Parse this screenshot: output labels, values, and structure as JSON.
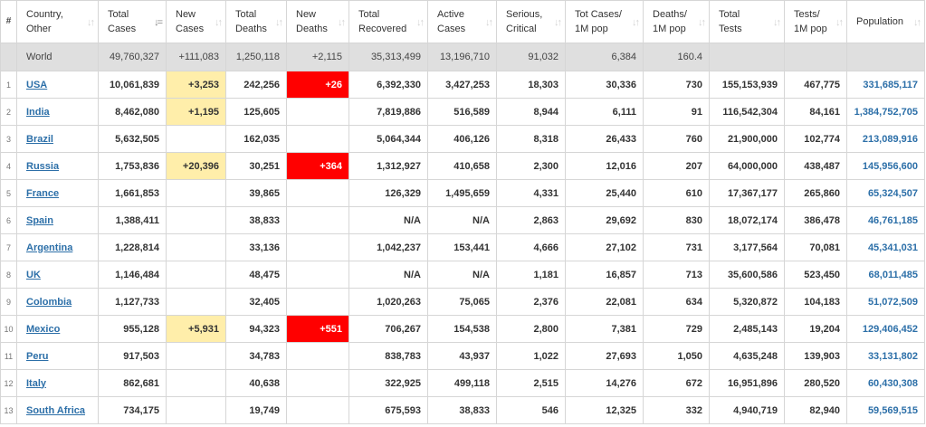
{
  "headers": [
    {
      "key": "rank",
      "label": "#",
      "sorted": false
    },
    {
      "key": "country",
      "label": "Country,\nOther",
      "sorted": false
    },
    {
      "key": "total_cases",
      "label": "Total\nCases",
      "sorted": true
    },
    {
      "key": "new_cases",
      "label": "New\nCases",
      "sorted": false
    },
    {
      "key": "total_deaths",
      "label": "Total\nDeaths",
      "sorted": false
    },
    {
      "key": "new_deaths",
      "label": "New\nDeaths",
      "sorted": false
    },
    {
      "key": "total_recovered",
      "label": "Total\nRecovered",
      "sorted": false
    },
    {
      "key": "active_cases",
      "label": "Active\nCases",
      "sorted": false
    },
    {
      "key": "serious_critical",
      "label": "Serious,\nCritical",
      "sorted": false
    },
    {
      "key": "tot_cases_1m",
      "label": "Tot Cases/\n1M pop",
      "sorted": false
    },
    {
      "key": "deaths_1m",
      "label": "Deaths/\n1M pop",
      "sorted": false
    },
    {
      "key": "total_tests",
      "label": "Total\nTests",
      "sorted": false
    },
    {
      "key": "tests_1m",
      "label": "Tests/\n1M pop",
      "sorted": false
    },
    {
      "key": "population",
      "label": "Population",
      "sorted": false
    }
  ],
  "sort_icons": {
    "unsorted": "↓↑",
    "sorted": "↓="
  },
  "world": {
    "country": "World",
    "total_cases": "49,760,327",
    "new_cases": "+111,083",
    "total_deaths": "1,250,118",
    "new_deaths": "+2,115",
    "total_recovered": "35,313,499",
    "active_cases": "13,196,710",
    "serious_critical": "91,032",
    "tot_cases_1m": "6,384",
    "deaths_1m": "160.4",
    "total_tests": "",
    "tests_1m": "",
    "population": ""
  },
  "rows": [
    {
      "rank": "1",
      "country": "USA",
      "total_cases": "10,061,839",
      "new_cases": "+3,253",
      "total_deaths": "242,256",
      "new_deaths": "+26",
      "total_recovered": "6,392,330",
      "active_cases": "3,427,253",
      "serious_critical": "18,303",
      "tot_cases_1m": "30,336",
      "deaths_1m": "730",
      "total_tests": "155,153,939",
      "tests_1m": "467,775",
      "population": "331,685,117"
    },
    {
      "rank": "2",
      "country": "India",
      "total_cases": "8,462,080",
      "new_cases": "+1,195",
      "total_deaths": "125,605",
      "new_deaths": "",
      "total_recovered": "7,819,886",
      "active_cases": "516,589",
      "serious_critical": "8,944",
      "tot_cases_1m": "6,111",
      "deaths_1m": "91",
      "total_tests": "116,542,304",
      "tests_1m": "84,161",
      "population": "1,384,752,705"
    },
    {
      "rank": "3",
      "country": "Brazil",
      "total_cases": "5,632,505",
      "new_cases": "",
      "total_deaths": "162,035",
      "new_deaths": "",
      "total_recovered": "5,064,344",
      "active_cases": "406,126",
      "serious_critical": "8,318",
      "tot_cases_1m": "26,433",
      "deaths_1m": "760",
      "total_tests": "21,900,000",
      "tests_1m": "102,774",
      "population": "213,089,916"
    },
    {
      "rank": "4",
      "country": "Russia",
      "total_cases": "1,753,836",
      "new_cases": "+20,396",
      "total_deaths": "30,251",
      "new_deaths": "+364",
      "total_recovered": "1,312,927",
      "active_cases": "410,658",
      "serious_critical": "2,300",
      "tot_cases_1m": "12,016",
      "deaths_1m": "207",
      "total_tests": "64,000,000",
      "tests_1m": "438,487",
      "population": "145,956,600"
    },
    {
      "rank": "5",
      "country": "France",
      "total_cases": "1,661,853",
      "new_cases": "",
      "total_deaths": "39,865",
      "new_deaths": "",
      "total_recovered": "126,329",
      "active_cases": "1,495,659",
      "serious_critical": "4,331",
      "tot_cases_1m": "25,440",
      "deaths_1m": "610",
      "total_tests": "17,367,177",
      "tests_1m": "265,860",
      "population": "65,324,507"
    },
    {
      "rank": "6",
      "country": "Spain",
      "total_cases": "1,388,411",
      "new_cases": "",
      "total_deaths": "38,833",
      "new_deaths": "",
      "total_recovered": "N/A",
      "active_cases": "N/A",
      "serious_critical": "2,863",
      "tot_cases_1m": "29,692",
      "deaths_1m": "830",
      "total_tests": "18,072,174",
      "tests_1m": "386,478",
      "population": "46,761,185"
    },
    {
      "rank": "7",
      "country": "Argentina",
      "total_cases": "1,228,814",
      "new_cases": "",
      "total_deaths": "33,136",
      "new_deaths": "",
      "total_recovered": "1,042,237",
      "active_cases": "153,441",
      "serious_critical": "4,666",
      "tot_cases_1m": "27,102",
      "deaths_1m": "731",
      "total_tests": "3,177,564",
      "tests_1m": "70,081",
      "population": "45,341,031"
    },
    {
      "rank": "8",
      "country": "UK",
      "total_cases": "1,146,484",
      "new_cases": "",
      "total_deaths": "48,475",
      "new_deaths": "",
      "total_recovered": "N/A",
      "active_cases": "N/A",
      "serious_critical": "1,181",
      "tot_cases_1m": "16,857",
      "deaths_1m": "713",
      "total_tests": "35,600,586",
      "tests_1m": "523,450",
      "population": "68,011,485"
    },
    {
      "rank": "9",
      "country": "Colombia",
      "total_cases": "1,127,733",
      "new_cases": "",
      "total_deaths": "32,405",
      "new_deaths": "",
      "total_recovered": "1,020,263",
      "active_cases": "75,065",
      "serious_critical": "2,376",
      "tot_cases_1m": "22,081",
      "deaths_1m": "634",
      "total_tests": "5,320,872",
      "tests_1m": "104,183",
      "population": "51,072,509"
    },
    {
      "rank": "10",
      "country": "Mexico",
      "total_cases": "955,128",
      "new_cases": "+5,931",
      "total_deaths": "94,323",
      "new_deaths": "+551",
      "total_recovered": "706,267",
      "active_cases": "154,538",
      "serious_critical": "2,800",
      "tot_cases_1m": "7,381",
      "deaths_1m": "729",
      "total_tests": "2,485,143",
      "tests_1m": "19,204",
      "population": "129,406,452"
    },
    {
      "rank": "11",
      "country": "Peru",
      "total_cases": "917,503",
      "new_cases": "",
      "total_deaths": "34,783",
      "new_deaths": "",
      "total_recovered": "838,783",
      "active_cases": "43,937",
      "serious_critical": "1,022",
      "tot_cases_1m": "27,693",
      "deaths_1m": "1,050",
      "total_tests": "4,635,248",
      "tests_1m": "139,903",
      "population": "33,131,802"
    },
    {
      "rank": "12",
      "country": "Italy",
      "total_cases": "862,681",
      "new_cases": "",
      "total_deaths": "40,638",
      "new_deaths": "",
      "total_recovered": "322,925",
      "active_cases": "499,118",
      "serious_critical": "2,515",
      "tot_cases_1m": "14,276",
      "deaths_1m": "672",
      "total_tests": "16,951,896",
      "tests_1m": "280,520",
      "population": "60,430,308"
    },
    {
      "rank": "13",
      "country": "South Africa",
      "total_cases": "734,175",
      "new_cases": "",
      "total_deaths": "19,749",
      "new_deaths": "",
      "total_recovered": "675,593",
      "active_cases": "38,833",
      "serious_critical": "546",
      "tot_cases_1m": "12,325",
      "deaths_1m": "332",
      "total_tests": "4,940,719",
      "tests_1m": "82,940",
      "population": "59,569,515"
    }
  ],
  "colors": {
    "new_cases_bg": "#ffeeaa",
    "new_deaths_bg": "#ff0000",
    "link": "#2c6fa8",
    "world_row_bg": "#dfdfdf"
  }
}
